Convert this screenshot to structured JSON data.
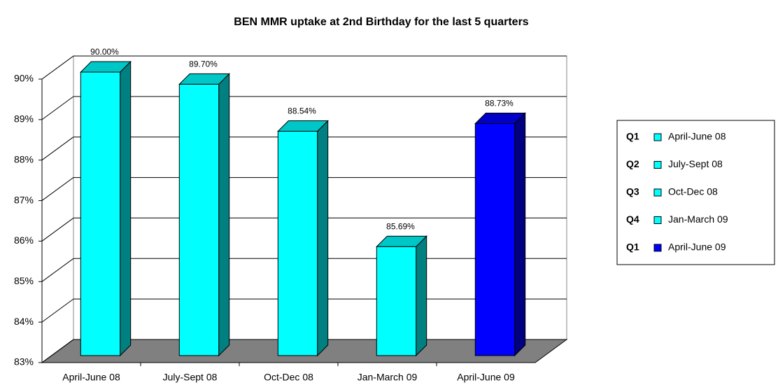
{
  "chart_data": {
    "type": "bar3d",
    "title": "BEN MMR uptake at 2nd Birthday for the last 5 quarters",
    "categories": [
      "April-June 08",
      "July-Sept 08",
      "Oct-Dec 08",
      "Jan-March 09",
      "April-June 09"
    ],
    "values": [
      90,
      89.7,
      88.54,
      85.69,
      88.73
    ],
    "value_labels": [
      "90.00%",
      "89.70%",
      "88.54%",
      "85.69%",
      "88.73%"
    ],
    "colors": [
      "#00ffff",
      "#00ffff",
      "#00ffff",
      "#00ffff",
      "#0000ff"
    ],
    "legend_codes": [
      "Q1",
      "Q2",
      "Q3",
      "Q4",
      "Q1"
    ],
    "ylim": [
      83,
      90
    ],
    "yticks": [
      {
        "value": 83,
        "label": "83%"
      },
      {
        "value": 84,
        "label": "84%"
      },
      {
        "value": 85,
        "label": "85%"
      },
      {
        "value": 86,
        "label": "86%"
      },
      {
        "value": 87,
        "label": "87%"
      },
      {
        "value": 88,
        "label": "88%"
      },
      {
        "value": 89,
        "label": "89%"
      },
      {
        "value": 90,
        "label": "90%"
      }
    ],
    "grid": true,
    "legend_position": "right"
  }
}
